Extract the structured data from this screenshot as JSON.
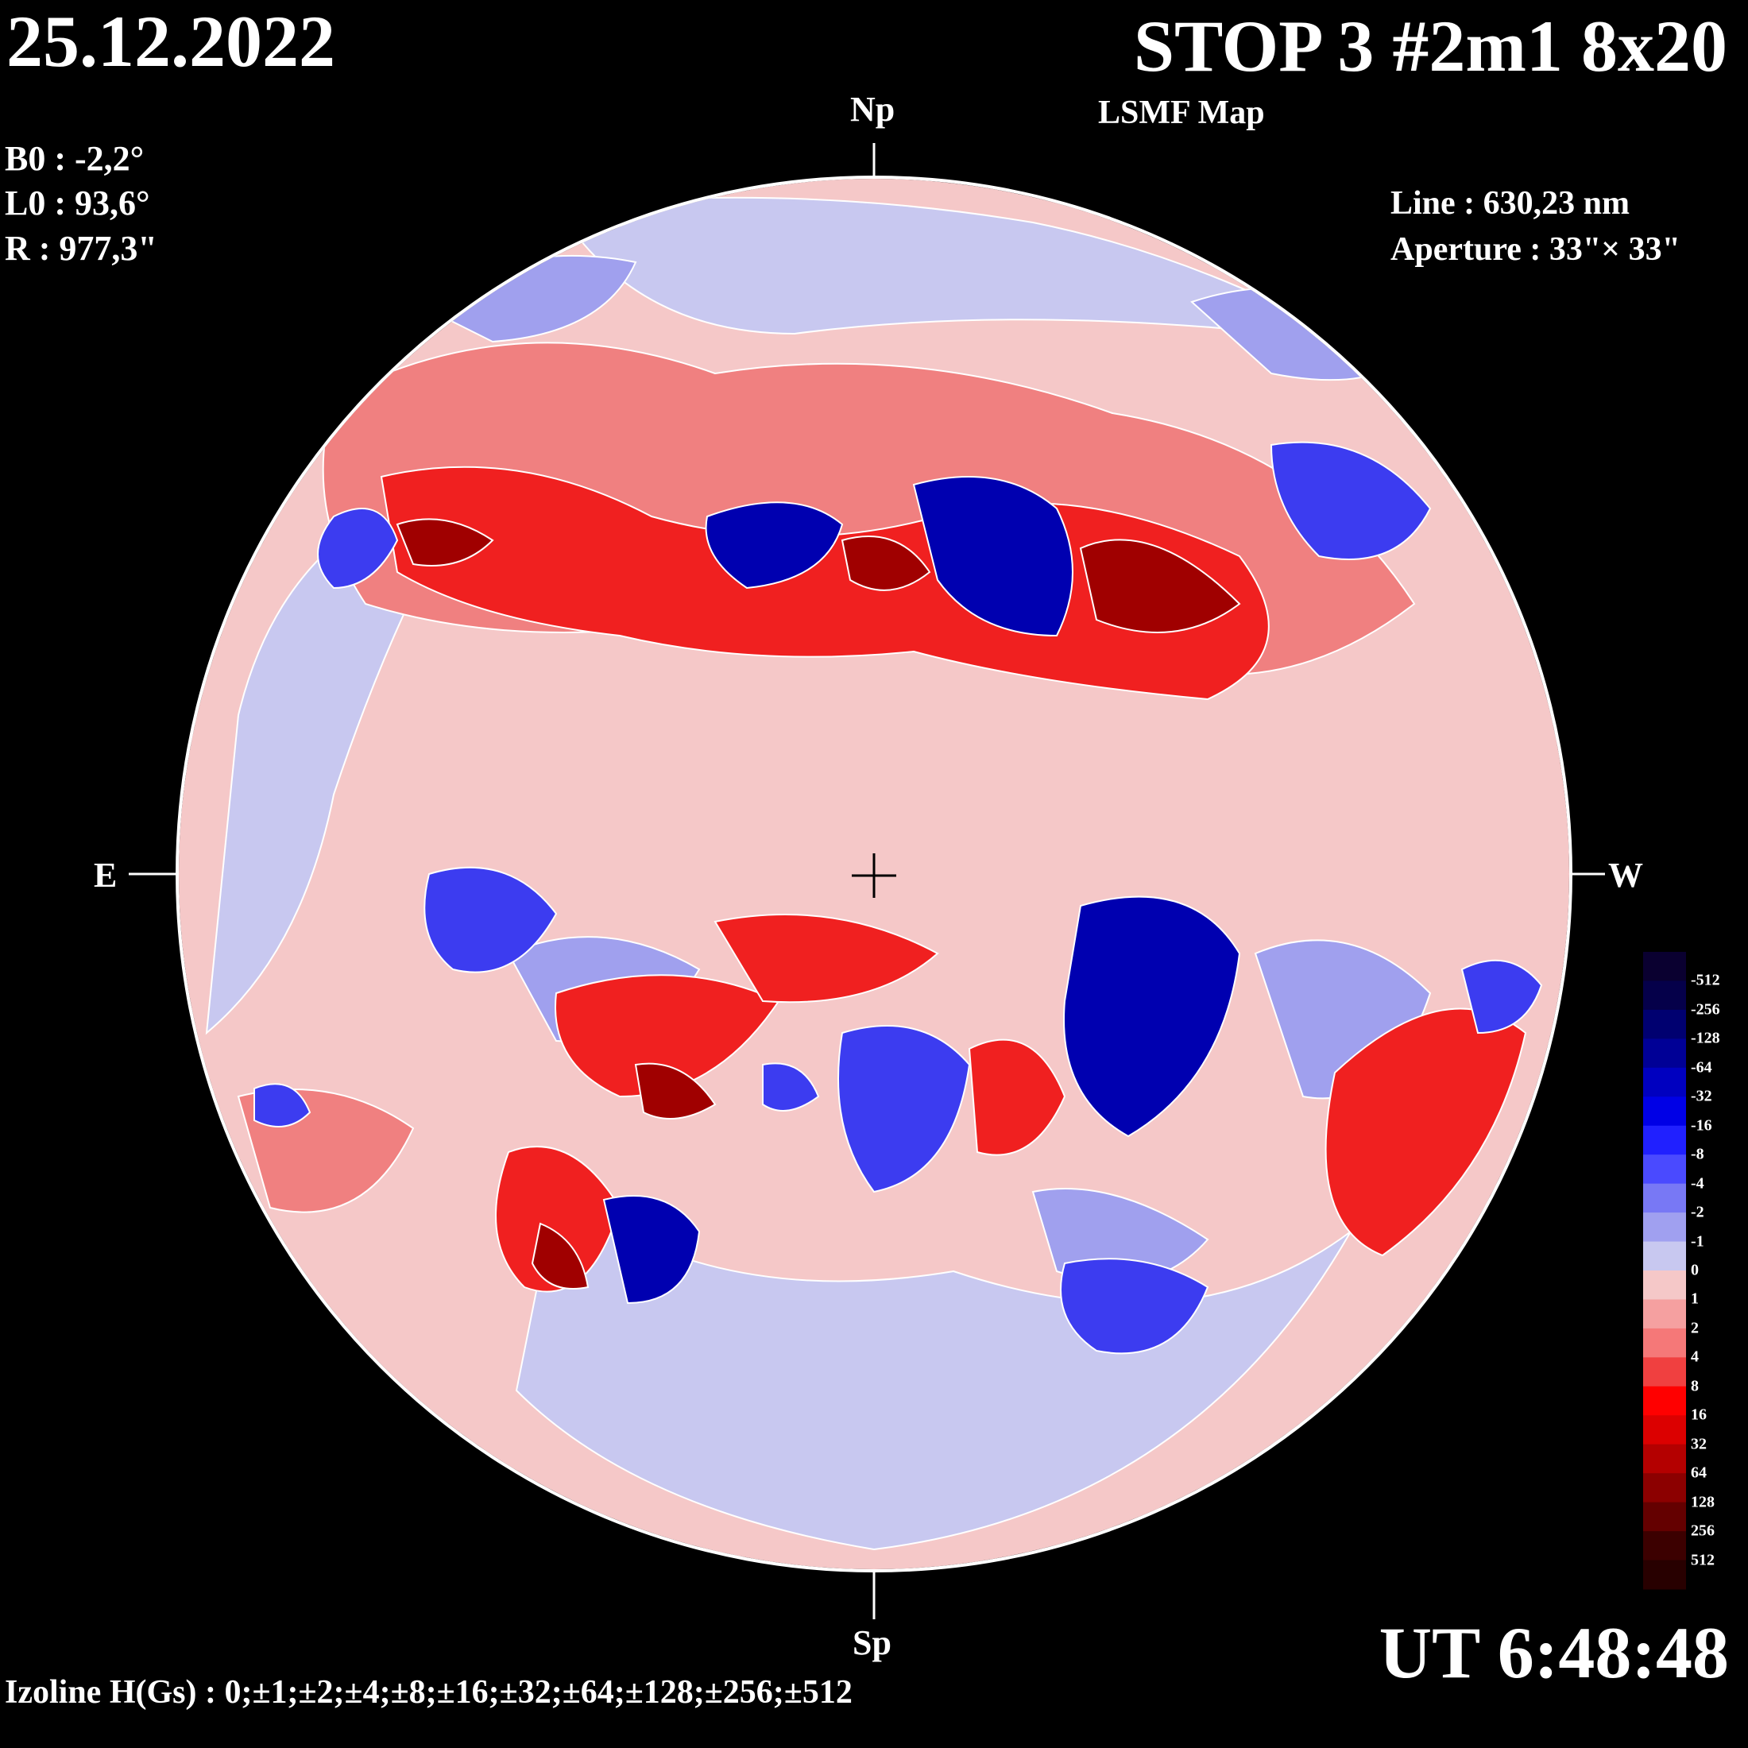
{
  "header": {
    "date": "25.12.2022",
    "title": "STOP 3 #2m1 8x20",
    "subtitle": "LSMF  Map"
  },
  "parameters": {
    "b0": "B0 : -2,2°",
    "l0": "L0 : 93,6°",
    "r": "R  : 977,3\""
  },
  "instrument": {
    "line": "Line :  630,23 nm",
    "aperture": "Aperture : 33\"× 33\""
  },
  "axes": {
    "north": "Np",
    "south": "Sp",
    "east": "E",
    "west": "W"
  },
  "time": "UT 6:48:48",
  "izoline": "Izoline H(Gs) : 0;±1;±2;±4;±8;±16;±32;±64;±128;±256;±512",
  "colorbar": {
    "labels": [
      "-512",
      "-256",
      "-128",
      "-64",
      "-32",
      "-16",
      "-8",
      "-4",
      "-2",
      "-1",
      "0",
      "1",
      "2",
      "4",
      "8",
      "16",
      "32",
      "64",
      "128",
      "256",
      "512"
    ],
    "colors": [
      "#0a0030",
      "#05004a",
      "#000070",
      "#000096",
      "#0000c0",
      "#0000e6",
      "#2020ff",
      "#4a4aff",
      "#7878f5",
      "#a0a0f0",
      "#c8c8f0",
      "#f5c8c8",
      "#f5a0a0",
      "#f57878",
      "#f04040",
      "#ff0000",
      "#dc0000",
      "#b40000",
      "#8c0000",
      "#640000",
      "#3c0000",
      "#280000"
    ]
  },
  "colors": {
    "background": "#000000",
    "neg_strong": "#0000b0",
    "neg_mid": "#3c3cf0",
    "neg_weak": "#a0a0ee",
    "neutral_neg": "#c8c8f0",
    "neutral_pos": "#f5c0c0",
    "pos_weak": "#f08080",
    "pos_mid": "#f02020",
    "pos_strong": "#a00000"
  }
}
